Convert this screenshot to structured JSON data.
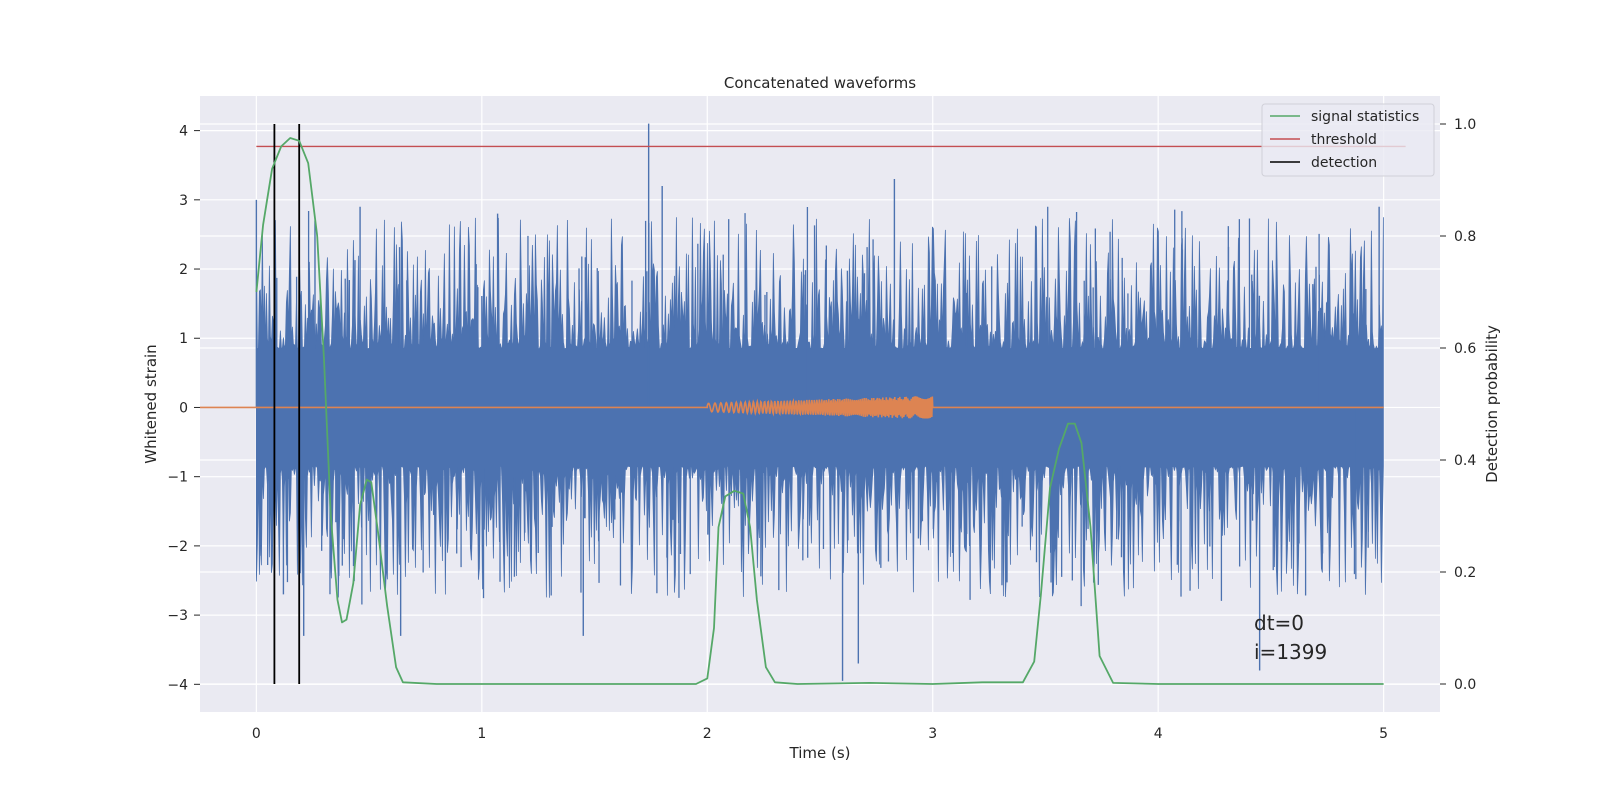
{
  "chart_data": {
    "type": "line",
    "title": "Concatenated waveforms",
    "xlabel": "Time (s)",
    "ylabel": "Whitened strain",
    "y2label": "Detection probability",
    "xlim": [
      -0.25,
      5.25
    ],
    "ylim": [
      -4.4,
      4.5
    ],
    "y2lim": [
      -0.05,
      1.05
    ],
    "x_ticks": [
      0,
      1,
      2,
      3,
      4,
      5
    ],
    "y_ticks": [
      -4,
      -3,
      -2,
      -1,
      0,
      1,
      2,
      3,
      4
    ],
    "y2_ticks": [
      0.0,
      0.2,
      0.4,
      0.6,
      0.8,
      1.0
    ],
    "x_tick_labels": [
      "0",
      "1",
      "2",
      "3",
      "4",
      "5"
    ],
    "y_tick_labels": [
      "−4",
      "−3",
      "−2",
      "−1",
      "0",
      "1",
      "2",
      "3",
      "4"
    ],
    "y2_tick_labels": [
      "0.0",
      "0.2",
      "0.4",
      "0.6",
      "0.8",
      "1.0"
    ],
    "grid": true,
    "legend_position": "top-right",
    "legend": [
      {
        "name": "signal statistics",
        "color": "#55a868"
      },
      {
        "name": "threshold",
        "color": "#c44e52"
      },
      {
        "name": "detection",
        "color": "#000000"
      }
    ],
    "noise": {
      "x_range": [
        0,
        5
      ],
      "color": "#4c72b0",
      "spikes": [
        {
          "x": 0.0,
          "y": 3.0
        },
        {
          "x": 0.08,
          "y": -2.2
        },
        {
          "x": 0.12,
          "y": -2.7
        },
        {
          "x": 0.21,
          "y": -3.3
        },
        {
          "x": 0.26,
          "y": 2.7
        },
        {
          "x": 0.46,
          "y": 2.9
        },
        {
          "x": 0.64,
          "y": -3.3
        },
        {
          "x": 1.07,
          "y": 2.8
        },
        {
          "x": 1.45,
          "y": -3.3
        },
        {
          "x": 1.74,
          "y": 4.1
        },
        {
          "x": 1.8,
          "y": 3.2
        },
        {
          "x": 2.6,
          "y": -3.95
        },
        {
          "x": 2.67,
          "y": -3.7
        },
        {
          "x": 2.83,
          "y": 3.3
        },
        {
          "x": 4.45,
          "y": -3.8
        },
        {
          "x": 4.98,
          "y": 2.9
        }
      ]
    },
    "injected_signal": {
      "x_range": [
        2,
        3
      ],
      "color": "#dd8452",
      "amplitude_start": 0.06,
      "amplitude_end": 0.17
    },
    "signal_statistics": {
      "color": "#55a868",
      "x": [
        0.0,
        0.03,
        0.07,
        0.11,
        0.15,
        0.19,
        0.23,
        0.27,
        0.3,
        0.33,
        0.36,
        0.38,
        0.4,
        0.43,
        0.46,
        0.49,
        0.51,
        0.54,
        0.58,
        0.62,
        0.65,
        0.8,
        1.0,
        1.5,
        1.95,
        2.0,
        2.03,
        2.05,
        2.08,
        2.12,
        2.16,
        2.19,
        2.22,
        2.26,
        2.3,
        2.4,
        2.72,
        3.0,
        3.22,
        3.4,
        3.45,
        3.48,
        3.52,
        3.56,
        3.6,
        3.63,
        3.66,
        3.7,
        3.74,
        3.8,
        4.0,
        4.5,
        5.0
      ],
      "y": [
        0.7,
        0.82,
        0.92,
        0.96,
        0.975,
        0.97,
        0.93,
        0.8,
        0.58,
        0.3,
        0.15,
        0.11,
        0.115,
        0.18,
        0.32,
        0.365,
        0.36,
        0.27,
        0.14,
        0.03,
        0.003,
        0.0,
        0.0,
        0.0,
        0.0,
        0.01,
        0.1,
        0.28,
        0.335,
        0.345,
        0.34,
        0.28,
        0.15,
        0.03,
        0.003,
        0.0,
        0.002,
        0.0,
        0.003,
        0.003,
        0.04,
        0.16,
        0.35,
        0.42,
        0.465,
        0.465,
        0.43,
        0.28,
        0.05,
        0.002,
        0.0,
        0.0,
        0.0
      ]
    },
    "threshold": {
      "value": 0.96,
      "x_range": [
        0,
        5
      ],
      "color": "#c44e52"
    },
    "detections": [
      0.08,
      0.19
    ],
    "annotations": [
      "dt=0",
      "i=1399"
    ]
  }
}
